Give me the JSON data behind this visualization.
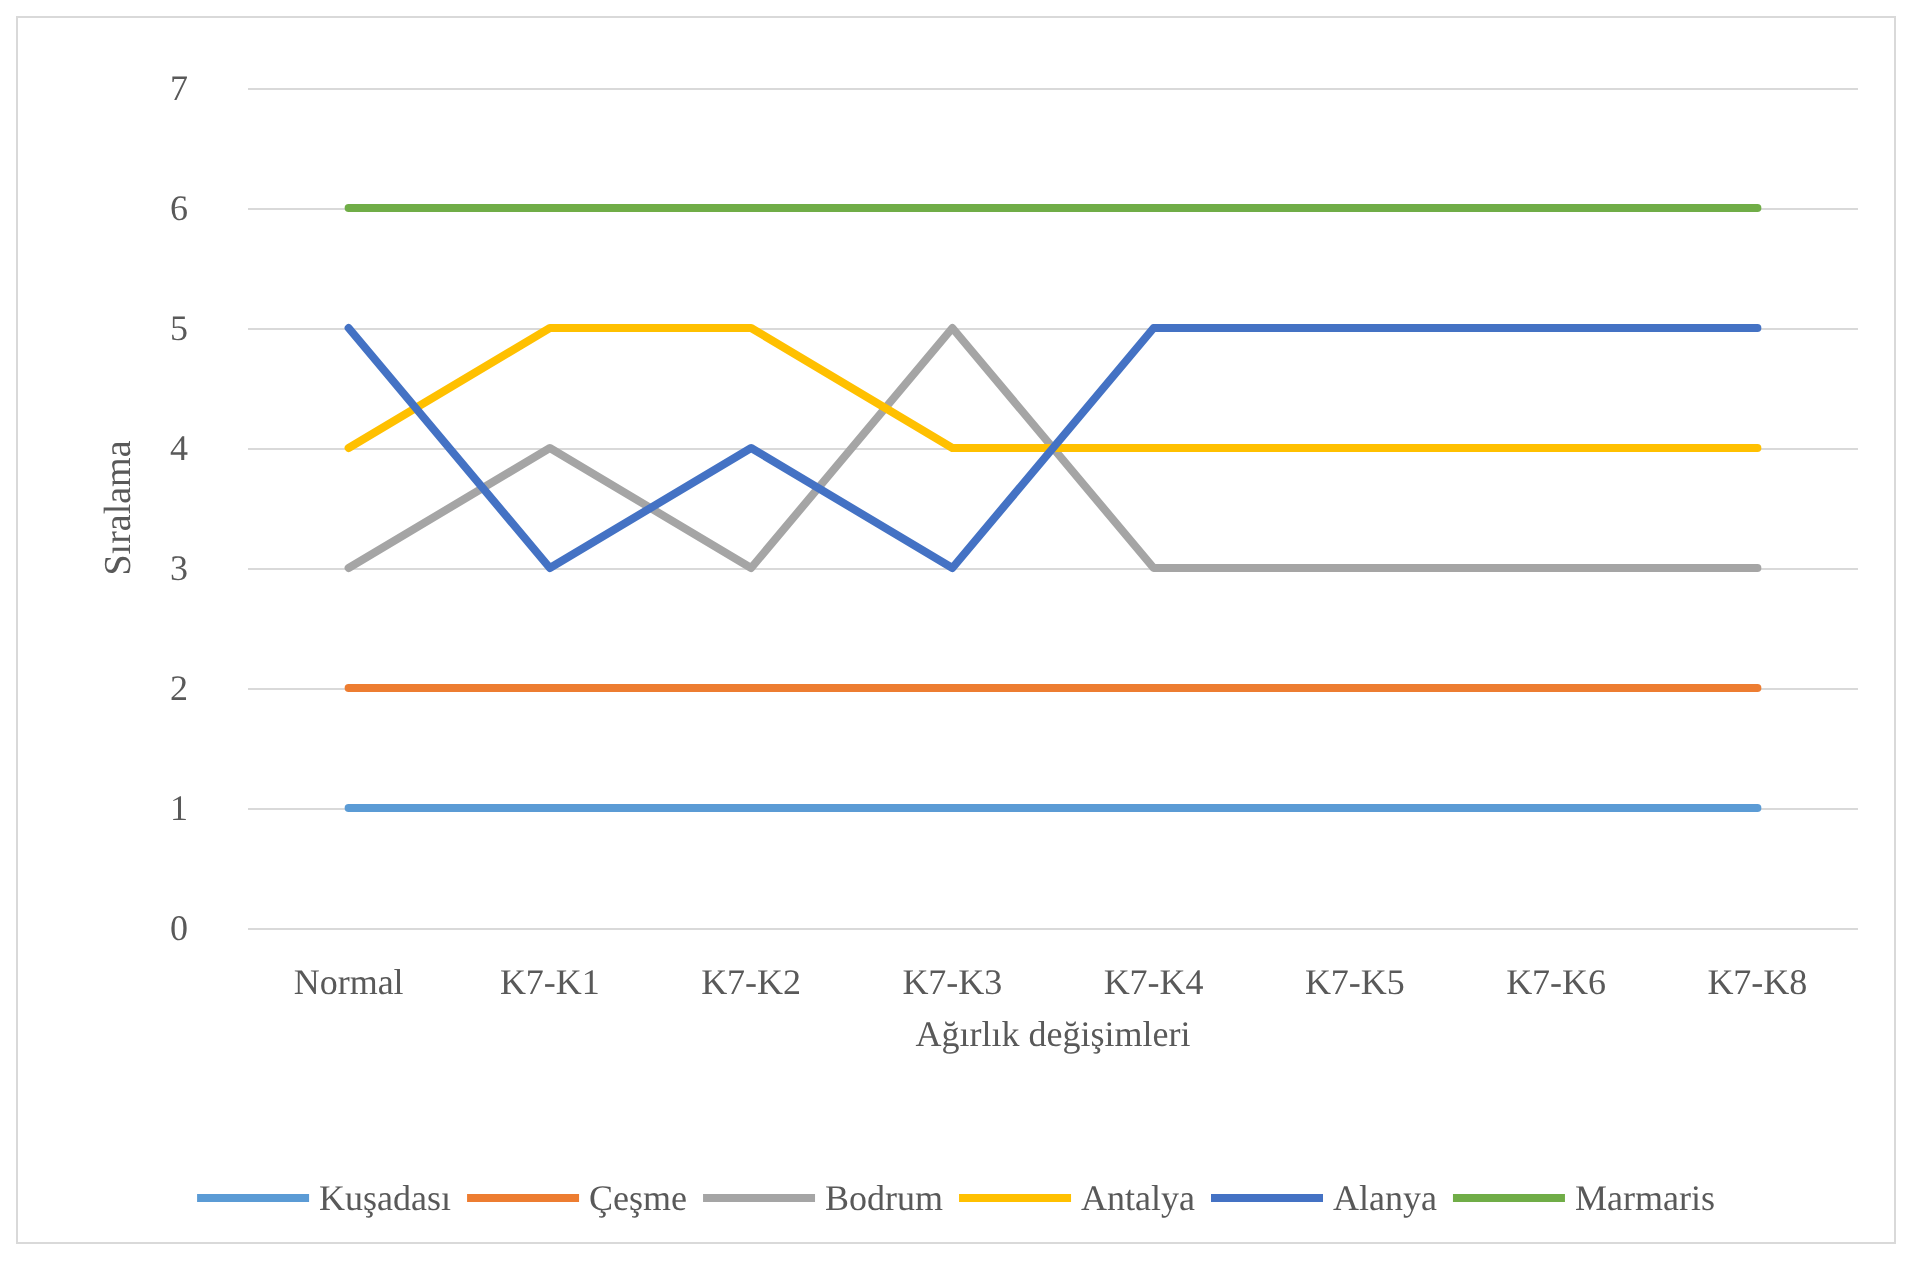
{
  "chart_data": {
    "type": "line",
    "xlabel": "Ağırlık değişimleri",
    "ylabel": "Sıralama",
    "categories": [
      "Normal",
      "K7-K1",
      "K7-K2",
      "K7-K3",
      "K7-K4",
      "K7-K5",
      "K7-K6",
      "K7-K8"
    ],
    "series": [
      {
        "name": "Kuşadası",
        "color": "#5b9bd5",
        "values": [
          1,
          1,
          1,
          1,
          1,
          1,
          1,
          1
        ]
      },
      {
        "name": "Çeşme",
        "color": "#ed7d31",
        "values": [
          2,
          2,
          2,
          2,
          2,
          2,
          2,
          2
        ]
      },
      {
        "name": "Bodrum",
        "color": "#a5a5a5",
        "values": [
          3,
          4,
          3,
          5,
          3,
          3,
          3,
          3
        ]
      },
      {
        "name": "Antalya",
        "color": "#ffc000",
        "values": [
          4,
          5,
          5,
          4,
          4,
          4,
          4,
          4
        ]
      },
      {
        "name": "Alanya",
        "color": "#4472c4",
        "values": [
          5,
          3,
          4,
          3,
          5,
          5,
          5,
          5
        ]
      },
      {
        "name": "Marmaris",
        "color": "#70ad47",
        "values": [
          6,
          6,
          6,
          6,
          6,
          6,
          6,
          6
        ]
      }
    ],
    "ylim": [
      0,
      7
    ],
    "yticks": [
      0,
      1,
      2,
      3,
      4,
      5,
      6,
      7
    ],
    "grid": "y",
    "legend": "bottom",
    "marker": "none",
    "line_style": "solid"
  }
}
